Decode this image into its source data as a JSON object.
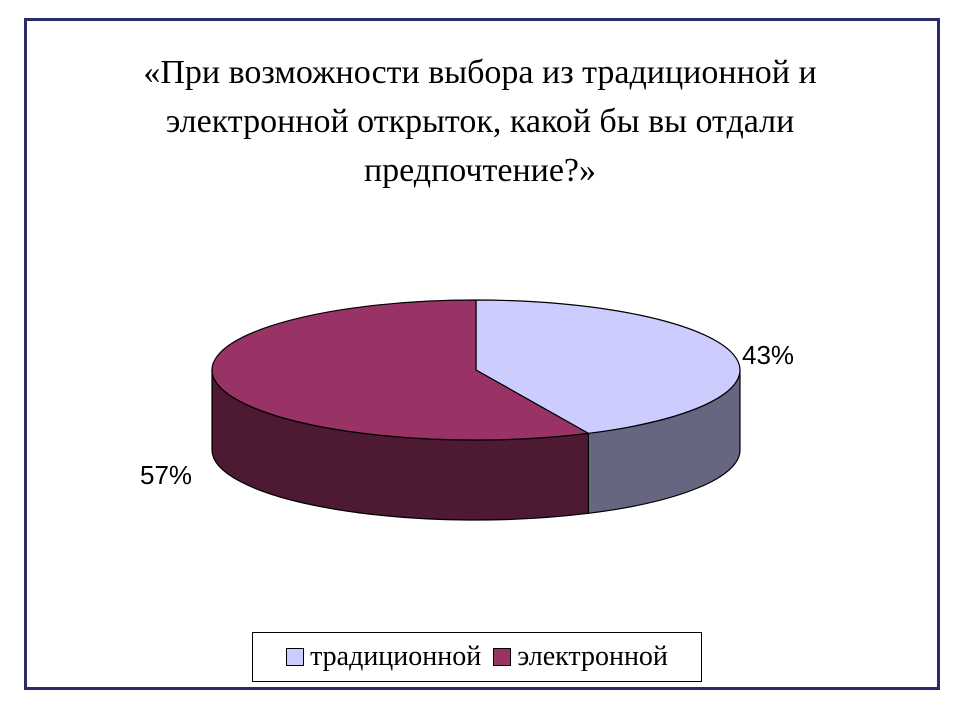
{
  "chart_data": {
    "type": "pie",
    "title": "«При возможности выбора из традиционной и электронной открыток, какой бы вы отдали предпочтение?»",
    "title_lines": [
      "«При возможности выбора из традиционной и",
      "электронной открыток, какой бы вы отдали",
      "предпочтение?»"
    ],
    "categories": [
      "традиционной",
      "электронной"
    ],
    "values": [
      43,
      57
    ],
    "labels": [
      "43%",
      "57%"
    ],
    "colors": [
      "#ccccff",
      "#993366"
    ],
    "side_colors": [
      "#666680",
      "#4d1933"
    ],
    "legend_position": "bottom",
    "three_d": true
  },
  "colors": {
    "frame_border": "#2b2b6b"
  }
}
